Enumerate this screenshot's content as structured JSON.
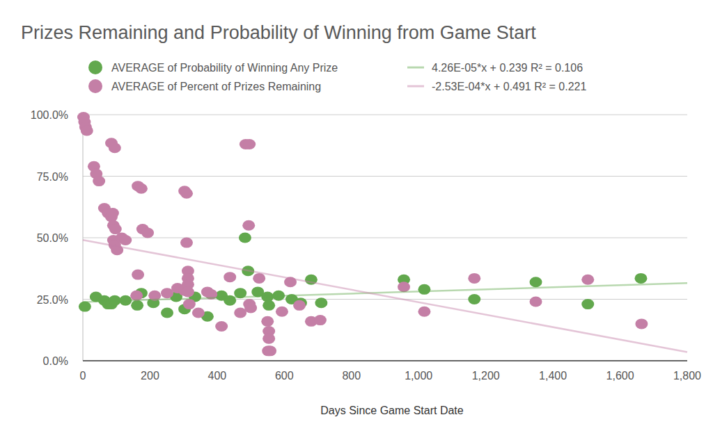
{
  "chart_data": {
    "type": "scatter",
    "title": "Prizes Remaining and Probability of Winning from Game Start",
    "x_label": "Days Since Game Start Date",
    "xlim": [
      0,
      1800
    ],
    "ylim": [
      0,
      1
    ],
    "xticks": [
      0,
      200,
      400,
      600,
      800,
      {
        "value": 1000,
        "label": "1,000"
      },
      {
        "value": 1200,
        "label": "1,200"
      },
      {
        "value": 1400,
        "label": "1,400"
      },
      {
        "value": 1600,
        "label": "1,600"
      },
      {
        "value": 1800,
        "label": "1,800"
      }
    ],
    "yticks": [
      {
        "value": 0,
        "label": "0.0%"
      },
      {
        "value": 0.25,
        "label": "25.0%"
      },
      {
        "value": 0.5,
        "label": "50.0%"
      },
      {
        "value": 0.75,
        "label": "75.0%"
      },
      {
        "value": 1,
        "label": "100.0%"
      }
    ],
    "grid": true,
    "legend": "top",
    "series": [
      {
        "name": "AVERAGE of Probability of Winning Any Prize",
        "color": "#62a84d",
        "marker": "circle",
        "x": [
          6,
          39,
          64,
          75,
          85,
          95,
          127,
          162,
          174,
          210,
          251,
          278,
          303,
          334,
          371,
          413,
          438,
          469,
          483,
          492,
          521,
          550,
          554,
          583,
          622,
          649,
          680,
          710,
          956,
          1017,
          1166,
          1349,
          1504,
          1662
        ],
        "values": [
          0.22,
          0.26,
          0.245,
          0.23,
          0.23,
          0.245,
          0.245,
          0.225,
          0.275,
          0.235,
          0.195,
          0.26,
          0.21,
          0.26,
          0.18,
          0.265,
          0.245,
          0.275,
          0.5,
          0.365,
          0.28,
          0.26,
          0.225,
          0.265,
          0.25,
          0.235,
          0.33,
          0.235,
          0.33,
          0.29,
          0.25,
          0.32,
          0.23,
          0.335
        ],
        "trendline": {
          "label": "4.26E-05*x + 0.239 R² = 0.106",
          "slope": 4.26e-05,
          "intercept": 0.239
        }
      },
      {
        "name": "AVERAGE of Percent of Prizes Remaining",
        "color": "#c47fa6",
        "marker": "circle",
        "x": [
          2,
          5,
          8,
          12,
          33,
          40,
          48,
          64,
          75,
          85,
          85,
          95,
          89,
          91,
          97,
          91,
          95,
          102,
          116,
          127,
          164,
          174,
          178,
          193,
          164,
          160,
          214,
          251,
          282,
          303,
          303,
          309,
          309,
          313,
          313,
          313,
          313,
          317,
          344,
          371,
          382,
          413,
          438,
          469,
          485,
          496,
          494,
          496,
          500,
          525,
          550,
          554,
          554,
          552,
          558,
          593,
          618,
          645,
          680,
          707,
          956,
          1017,
          1166,
          1349,
          1504,
          1664
        ],
        "values": [
          0.99,
          0.97,
          0.95,
          0.935,
          0.79,
          0.76,
          0.73,
          0.62,
          0.6,
          0.585,
          0.885,
          0.865,
          0.6,
          0.55,
          0.535,
          0.49,
          0.47,
          0.45,
          0.5,
          0.49,
          0.71,
          0.7,
          0.535,
          0.52,
          0.35,
          0.265,
          0.265,
          0.275,
          0.295,
          0.285,
          0.69,
          0.68,
          0.48,
          0.365,
          0.335,
          0.31,
          0.28,
          0.23,
          0.195,
          0.28,
          0.27,
          0.14,
          0.34,
          0.195,
          0.88,
          0.88,
          0.55,
          0.23,
          0.215,
          0.335,
          0.16,
          0.12,
          0.09,
          0.04,
          0.04,
          0.2,
          0.32,
          0.225,
          0.16,
          0.165,
          0.3,
          0.2,
          0.335,
          0.24,
          0.33,
          0.15
        ],
        "trendline": {
          "label": "-2.53E-04*x + 0.491 R² = 0.221",
          "slope": -0.000253,
          "intercept": 0.491
        }
      }
    ]
  }
}
